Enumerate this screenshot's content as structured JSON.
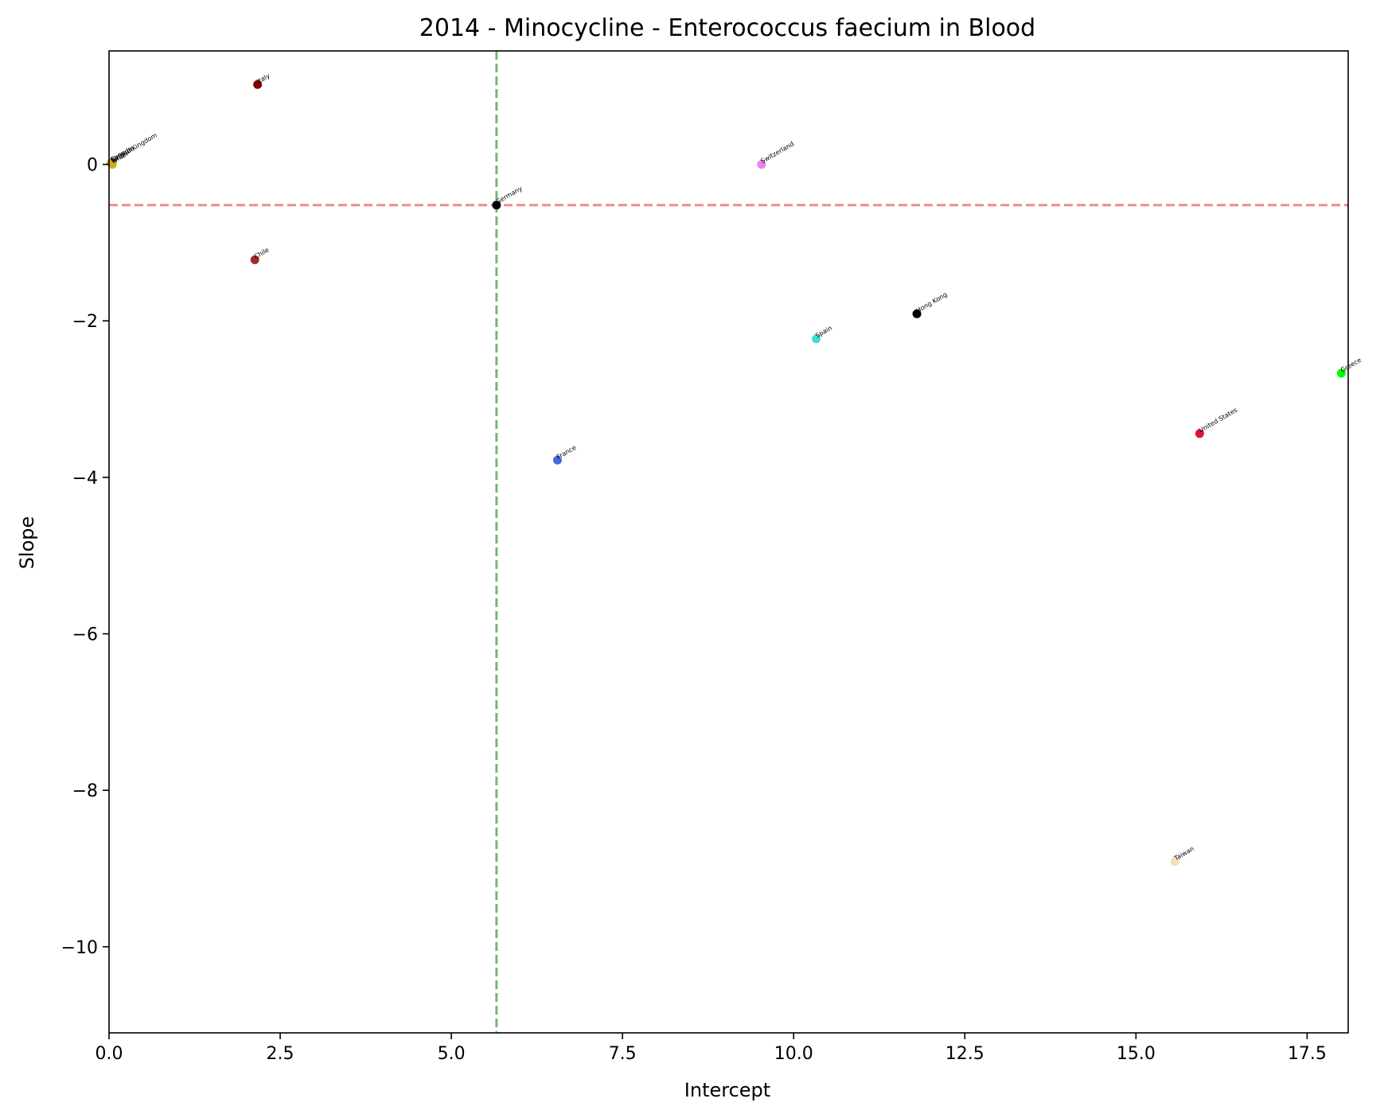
{
  "chart_data": {
    "type": "scatter",
    "title": "2014 - Minocycline - Enterococcus faecium in Blood",
    "xlabel": "Intercept",
    "ylabel": "Slope",
    "xlim": [
      0,
      18.1
    ],
    "ylim": [
      -11.1,
      1.45
    ],
    "grid": false,
    "x_ticks": [
      0,
      2.5,
      5,
      7.5,
      10,
      12.5,
      15,
      17.5
    ],
    "x_tick_labels": [
      "0.0",
      "2.5",
      "5.0",
      "7.5",
      "10.0",
      "12.5",
      "15.0",
      "17.5"
    ],
    "y_ticks": [
      0,
      -2,
      -4,
      -6,
      -8,
      -10
    ],
    "y_tick_labels": [
      "0",
      "−2",
      "−4",
      "−6",
      "−8",
      "−10"
    ],
    "reference_lines": [
      {
        "orientation": "horizontal",
        "value": -0.52,
        "color": "#f28b8b",
        "style": "dashed"
      },
      {
        "orientation": "vertical",
        "value": 5.66,
        "color": "#6dbb6d",
        "style": "dashed"
      }
    ],
    "points": [
      {
        "label": "Italy",
        "x": 2.17,
        "y": 1.02,
        "color": "#800000"
      },
      {
        "label": "Chile",
        "x": 2.13,
        "y": -1.22,
        "color": "#a52a2a"
      },
      {
        "label": "Germany",
        "x": 5.66,
        "y": -0.52,
        "color": "#000000"
      },
      {
        "label": "France",
        "x": 6.55,
        "y": -3.78,
        "color": "#4169e1"
      },
      {
        "label": "Switzerland",
        "x": 9.53,
        "y": 0.0,
        "color": "#ee82ee"
      },
      {
        "label": "Spain",
        "x": 10.33,
        "y": -2.23,
        "color": "#40e0d0"
      },
      {
        "label": "Hong Kong",
        "x": 11.8,
        "y": -1.91,
        "color": "#000000"
      },
      {
        "label": "United States",
        "x": 15.93,
        "y": -3.44,
        "color": "#dc143c"
      },
      {
        "label": "Greece",
        "x": 18.0,
        "y": -2.67,
        "color": "#00ff00"
      },
      {
        "label": "Taiwan",
        "x": 15.57,
        "y": -8.91,
        "color": "#f5deb3"
      },
      {
        "label": "United Kingdom",
        "x": 0.05,
        "y": 0.02,
        "color": "#808000"
      },
      {
        "label": "Belgium",
        "x": 0.04,
        "y": 0.01,
        "color": "#ffd700"
      },
      {
        "label": "Israel",
        "x": 0.05,
        "y": 0.0,
        "color": "#9acd32"
      },
      {
        "label": "Canada",
        "x": 0.03,
        "y": 0.02,
        "color": "#daa520"
      }
    ]
  }
}
